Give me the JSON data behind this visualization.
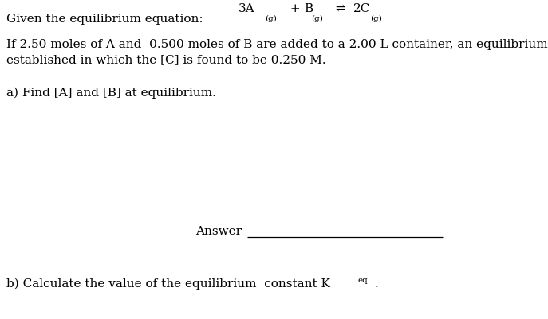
{
  "bg_color": "#ffffff",
  "figsize": [
    6.87,
    4.01
  ],
  "dpi": 100,
  "line1_label": "Given the equilibrium equation:",
  "para1_line1": "If 2.50 moles of A and  0.500 moles of B are added to a 2.00 L container, an equilibrium  is",
  "para1_line2": "established in which the [C] is found to be 0.250 M.",
  "part_a_text": "a) Find [A] and [B] at equilibrium.",
  "answer_text": "Answer",
  "part_b_text": "b) Calculate the value of the equilibrium  constant K",
  "font_size": 11.0,
  "font_family": "DejaVu Serif",
  "font_size_sub": 7.5
}
